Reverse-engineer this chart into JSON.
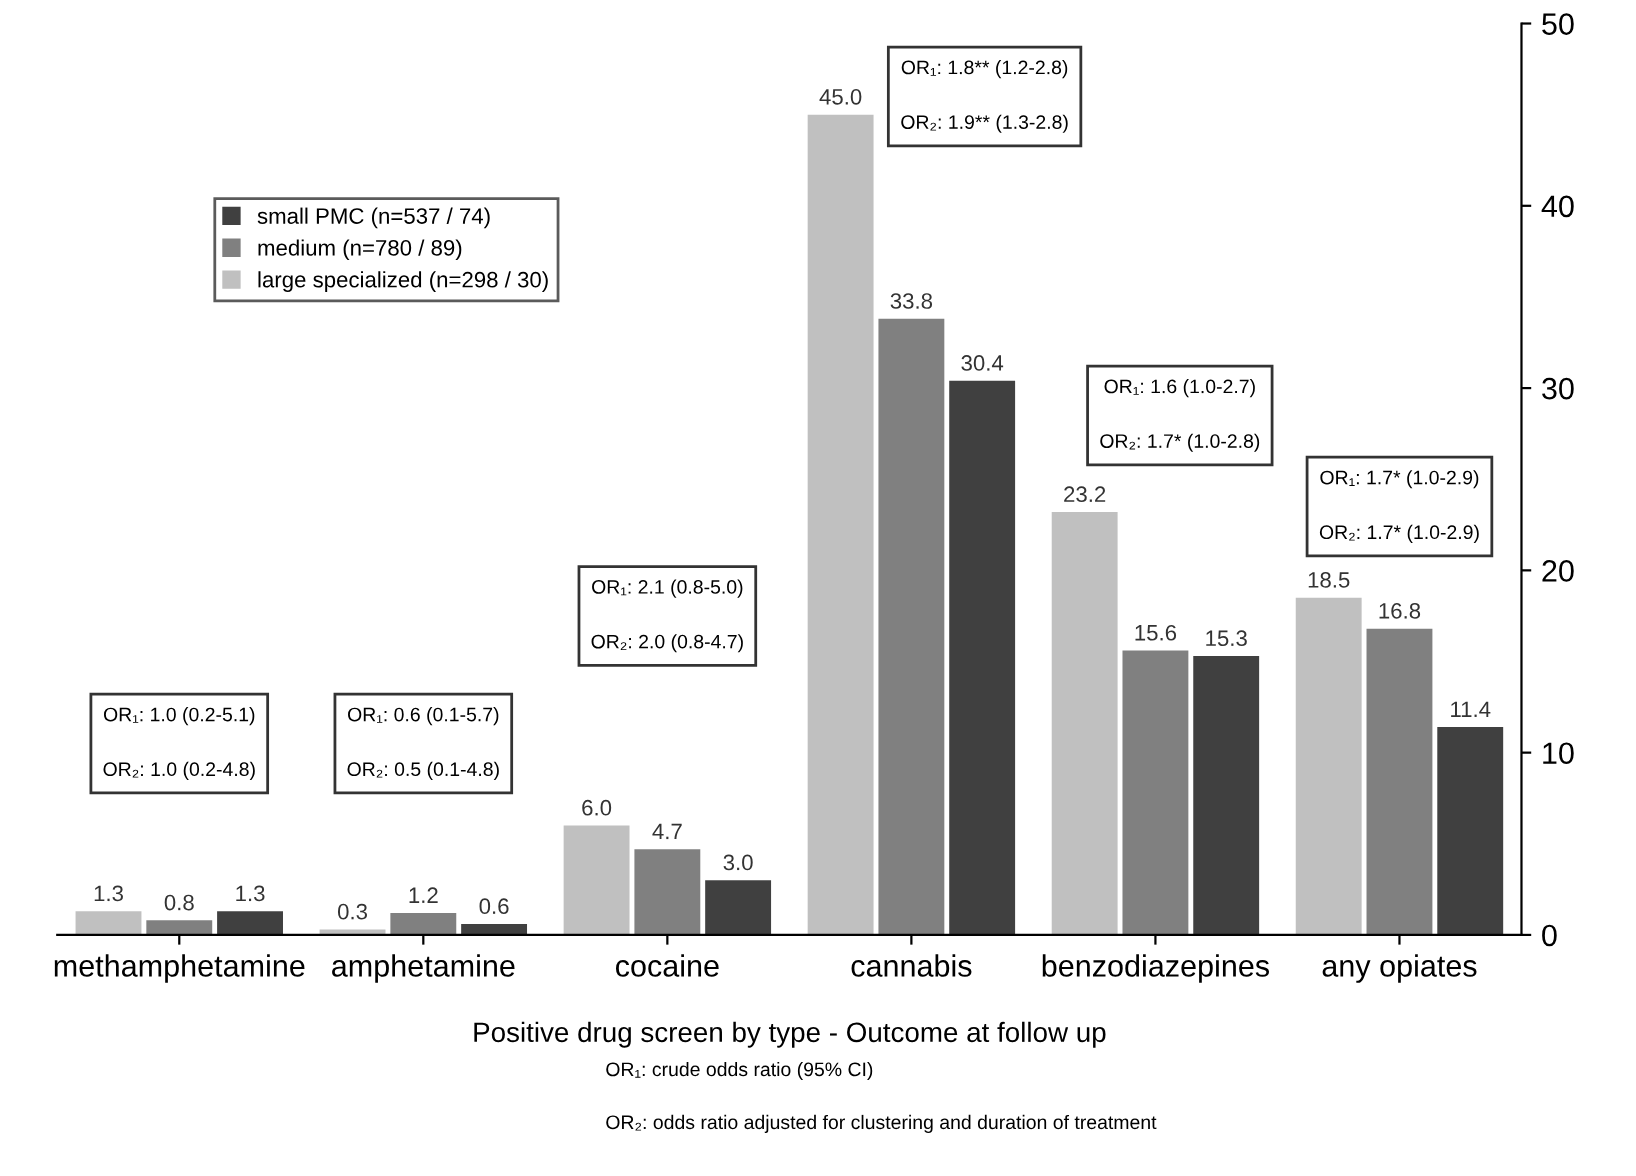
{
  "chart_data": {
    "type": "bar",
    "xlabel": "Positive drug screen by type - Outcome at follow up",
    "categories": [
      "methamphetamine",
      "amphetamine",
      "cocaine",
      "cannabis",
      "benzodiazepines",
      "any opiates"
    ],
    "series": [
      {
        "name": "large specialized (n=298 / 30)",
        "color": "#c0c0c0",
        "values": [
          1.3,
          0.3,
          6.0,
          45.0,
          23.2,
          18.5
        ],
        "value_labels": [
          "1.3",
          "0.3",
          "6.0",
          "45.0",
          "23.2",
          "18.5"
        ]
      },
      {
        "name": "medium (n=780 / 89)",
        "color": "#808080",
        "values": [
          0.8,
          1.2,
          4.7,
          33.8,
          15.6,
          16.8
        ],
        "value_labels": [
          "0.8",
          "1.2",
          "4.7",
          "33.8",
          "15.6",
          "16.8"
        ]
      },
      {
        "name": "small PMC (n=537 / 74)",
        "color": "#404040",
        "values": [
          1.3,
          0.6,
          3.0,
          30.4,
          15.3,
          11.4
        ],
        "value_labels": [
          "1.3",
          "0.6",
          "3.0",
          "30.4",
          "15.3",
          "11.4"
        ]
      }
    ],
    "ylim": [
      0,
      50
    ],
    "yticks": [
      0,
      10,
      20,
      30,
      40,
      50
    ],
    "data_labels": true,
    "grid": false,
    "legend": "top left",
    "annotations": [
      "OR₁: 1.0 (0.2-5.1)",
      "OR₂: 1.0 (0.2-4.8)",
      "OR₁: 0.6 (0.1-5.7)",
      "OR₂: 0.5 (0.1-4.8)",
      "OR₁: 2.1 (0.8-5.0)",
      "OR₂: 2.0 (0.8-4.7)",
      "OR₁: 1.8** (1.2-2.8)",
      "OR₂: 1.9** (1.3-2.8)",
      "OR₁: 1.6 (1.0-2.7)",
      "OR₂: 1.7* (1.0-2.8)",
      "OR₁: 1.7* (1.0-2.9)",
      "OR₂: 1.7* (1.0-2.9)",
      "OR₁: crude odds ratio (95% CI)",
      "OR₂: odds ratio adjusted for clustering and duration of treatment"
    ]
  }
}
